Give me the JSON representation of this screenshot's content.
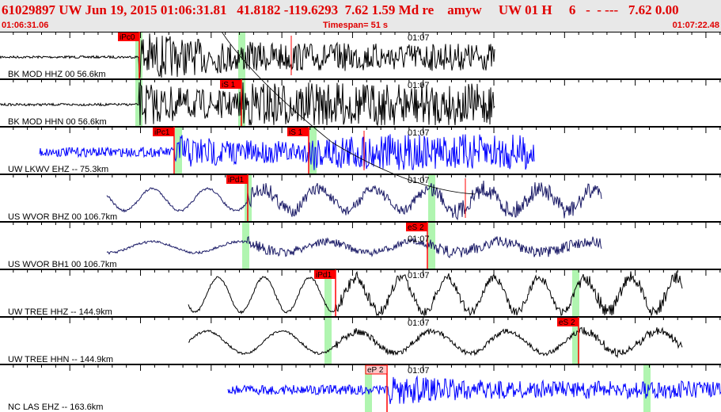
{
  "header": {
    "title": "61029897 UW Jun 19, 2015 01:06:31.81   41.8182 -119.6293  7.62 1.59 Md re    amyw     UW 01 H     6   -  - ---   7.62 0.00",
    "start_time": "01:06:31.06",
    "timespan": "Timespan=  51 s",
    "end_time": "01:07:22.48"
  },
  "time_tick_label": "01:07",
  "colors": {
    "pick": "#ff0000",
    "pick_emergent_bg": "#ffc8c8",
    "band": "#b0f5b0",
    "trace_black": "#000000",
    "trace_blue": "#0000ff",
    "trace_navy": "#1a1a66"
  },
  "traces": [
    {
      "label": "BK MOD HHZ 00 56.6km",
      "color": "#000000",
      "picks": [
        {
          "label": "iPc0"
        }
      ]
    },
    {
      "label": "BK MOD HHN 00 56.6km",
      "color": "#000000",
      "picks": [
        {
          "label": "iS 1"
        }
      ]
    },
    {
      "label": "UW LKWV EHZ -- 75.3km",
      "color": "#0000ff",
      "picks": [
        {
          "label": "iPc1"
        },
        {
          "label": "iS 1"
        }
      ]
    },
    {
      "label": "US WVOR BHZ 00 106.7km",
      "color": "#1a1a66",
      "picks": [
        {
          "label": "iPd1"
        }
      ]
    },
    {
      "label": "US WVOR BH1 00 106.7km",
      "color": "#1a1a66",
      "picks": [
        {
          "label": "eS 2"
        }
      ]
    },
    {
      "label": "UW TREE HHZ -- 144.9km",
      "color": "#000000",
      "picks": [
        {
          "label": "iPd1"
        }
      ]
    },
    {
      "label": "UW TREE HHN -- 144.9km",
      "color": "#000000",
      "picks": [
        {
          "label": "eS 2"
        }
      ]
    },
    {
      "label": "NC LAS EHZ -- 163.6km",
      "color": "#0000ff",
      "picks": [
        {
          "label": "eP 2",
          "emergent": true
        }
      ]
    }
  ]
}
